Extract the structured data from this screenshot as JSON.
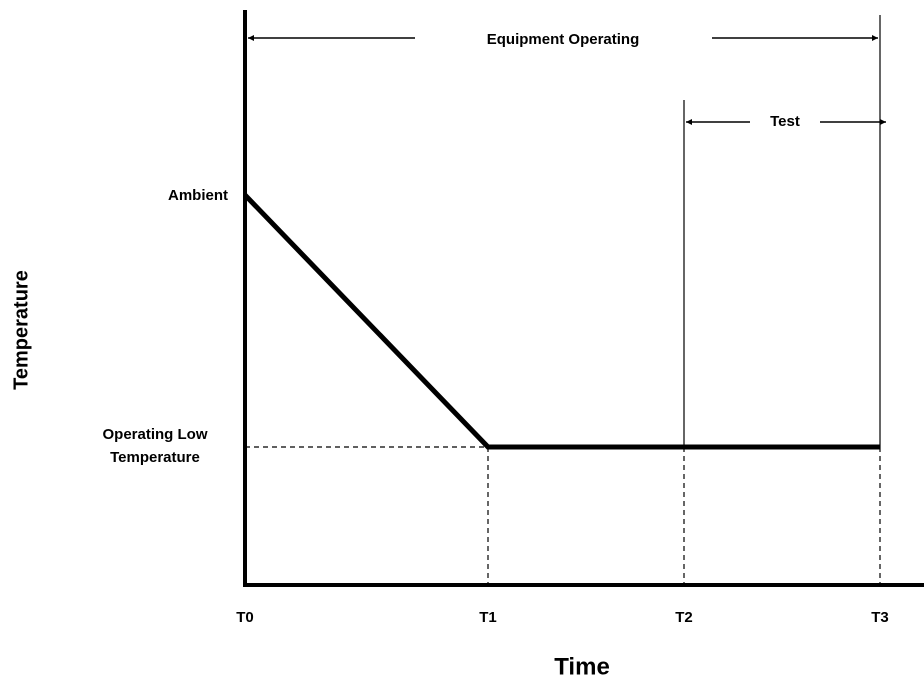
{
  "diagram": {
    "x_label": "Time",
    "y_label": "Temperature",
    "y_levels": {
      "high": "Ambient",
      "low": [
        "Operating Low",
        "Temperature"
      ]
    },
    "x_points": [
      "T0",
      "T1",
      "T2",
      "T3"
    ],
    "spans": {
      "operating": "Equipment Operating",
      "test": "Test"
    }
  }
}
